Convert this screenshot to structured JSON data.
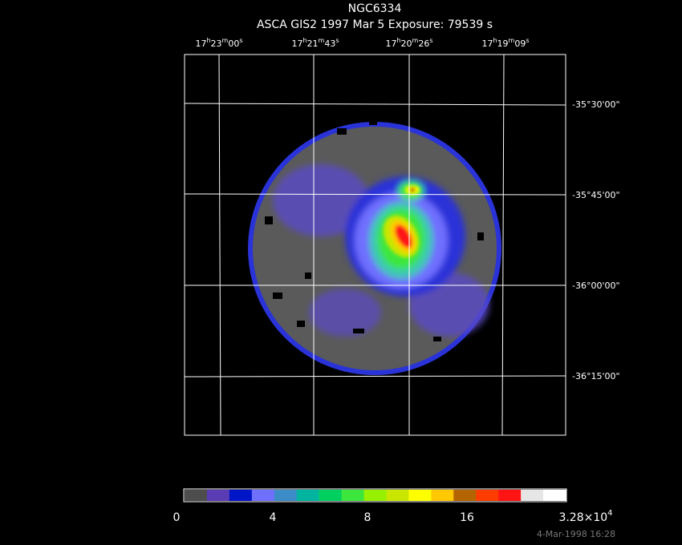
{
  "header": {
    "title": "NGC6334",
    "subtitle": "ASCA GIS2   1997 Mar  5    Exposure: 79539 s"
  },
  "ra_labels": [
    [
      "17",
      "h",
      "23",
      "m",
      "00",
      "s"
    ],
    [
      "17",
      "h",
      "21",
      "m",
      "43",
      "s"
    ],
    [
      "17",
      "h",
      "20",
      "m",
      "26",
      "s"
    ],
    [
      "17",
      "h",
      "19",
      "m",
      "09",
      "s"
    ]
  ],
  "dec_labels": [
    "-35°30'00\"",
    "-35°45'00\"",
    "-36°00'00\"",
    "-36°15'00\""
  ],
  "colorbar": {
    "colors": [
      "#4d4d4d",
      "#5a3cb4",
      "#0014c8",
      "#7070ff",
      "#3c8cc8",
      "#00b4a0",
      "#00d060",
      "#3ce63c",
      "#96f000",
      "#c8e600",
      "#ffff00",
      "#ffc800",
      "#b46400",
      "#ff3c00",
      "#ff1414",
      "#e6e6e6",
      "#ffffff"
    ],
    "labels": [
      "0",
      "4",
      "8",
      "16"
    ],
    "max_label": {
      "mantissa": "3.28×10",
      "exponent": "4"
    }
  },
  "footer": {
    "timestamp": "4-Mar-1998 16:28"
  }
}
